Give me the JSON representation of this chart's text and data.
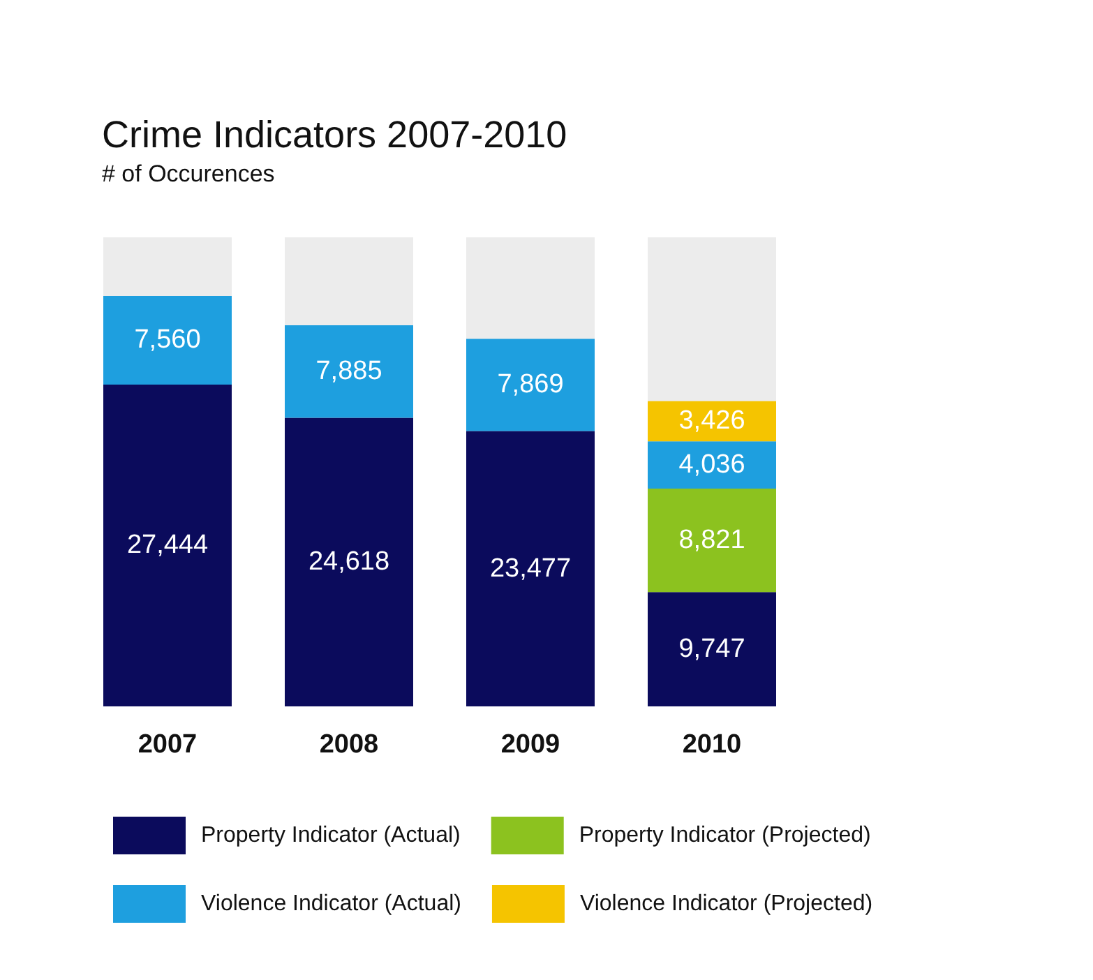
{
  "chart_data": {
    "type": "bar",
    "title": "Crime Indicators 2007-2010",
    "subtitle": "# of Occurences",
    "categories": [
      "2007",
      "2008",
      "2009",
      "2010"
    ],
    "stacked": true,
    "legend": "bottom",
    "series": [
      {
        "name": "Property Indicator (Actual)",
        "color": "#0b0b5c",
        "values": [
          27444,
          24618,
          23477,
          9747
        ],
        "value_labels": [
          "27,444",
          "24,618",
          "23,477",
          "9,747"
        ]
      },
      {
        "name": "Property Indicator (Projected)",
        "color": "#8cc21f",
        "values": [
          null,
          null,
          null,
          8821
        ],
        "value_labels": [
          null,
          null,
          null,
          "8,821"
        ]
      },
      {
        "name": "Violence Indicator (Actual)",
        "color": "#1e9fdf",
        "values": [
          7560,
          7885,
          7869,
          4036
        ],
        "value_labels": [
          "7,560",
          "7,885",
          "7,869",
          "4,036"
        ]
      },
      {
        "name": "Violence Indicator (Projected)",
        "color": "#f5c400",
        "values": [
          null,
          null,
          null,
          3426
        ],
        "value_labels": [
          null,
          null,
          null,
          "3,426"
        ]
      }
    ]
  }
}
